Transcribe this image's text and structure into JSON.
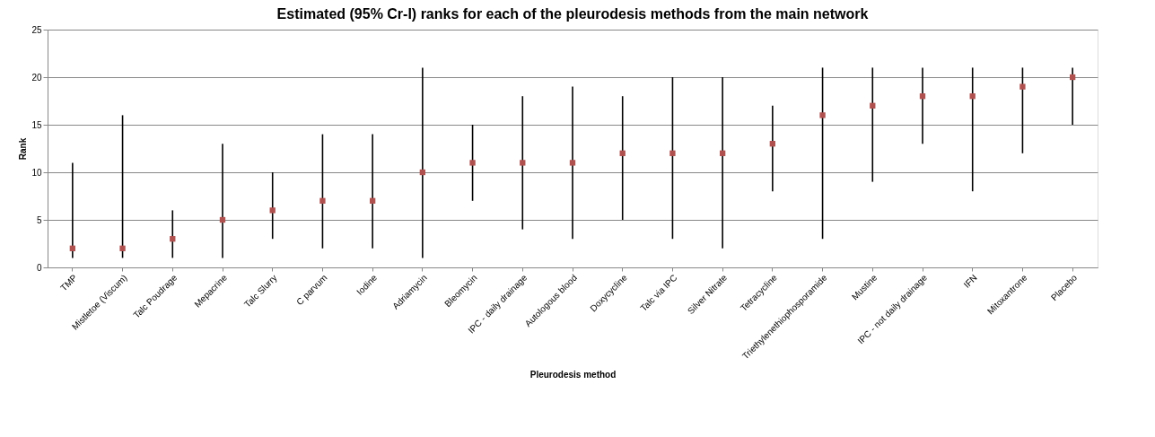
{
  "chart_data": {
    "type": "scatter",
    "title": "Estimated (95% Cr-I) ranks for each of the pleurodesis methods from the main network",
    "xlabel": "Pleurodesis method",
    "ylabel": "Rank",
    "categories": [
      "TMP",
      "Mistletoe (Viscum)",
      "Talc Poudrage",
      "Mepacrine",
      "Talc Slurry",
      "C parvum",
      "Iodine",
      "Adriamycin",
      "Bleomycin",
      "IPC - daily drainage",
      "Autologous blood",
      "Doxycycline",
      "Talc via IPC",
      "Silver Nitrate",
      "Tetracycline",
      "Triethylenethiophosporamide",
      "Mustine",
      "IPC - not daily drainage",
      "IFN",
      "Mitoxantrone",
      "Placebo"
    ],
    "series": [
      {
        "color": "#b0504f",
        "values": [
          2,
          2,
          3,
          5,
          6,
          7,
          7,
          10,
          11,
          11,
          11,
          12,
          12,
          12,
          13,
          16,
          17,
          18,
          18,
          19,
          20
        ],
        "errors": [
          [
            1,
            11
          ],
          [
            1,
            16
          ],
          [
            1,
            6
          ],
          [
            1,
            13
          ],
          [
            3,
            10
          ],
          [
            2,
            14
          ],
          [
            2,
            14
          ],
          [
            1,
            21
          ],
          [
            7,
            15
          ],
          [
            4,
            18
          ],
          [
            3,
            19
          ],
          [
            5,
            18
          ],
          [
            3,
            20
          ],
          [
            2,
            20
          ],
          [
            8,
            17
          ],
          [
            3,
            21
          ],
          [
            9,
            21
          ],
          [
            13,
            21
          ],
          [
            8,
            21
          ],
          [
            12,
            21
          ],
          [
            15,
            21
          ]
        ]
      }
    ],
    "ylim": [
      0,
      25
    ],
    "yticks": [
      0,
      5,
      10,
      15,
      20,
      25
    ],
    "grid": "y",
    "marker": "square"
  }
}
